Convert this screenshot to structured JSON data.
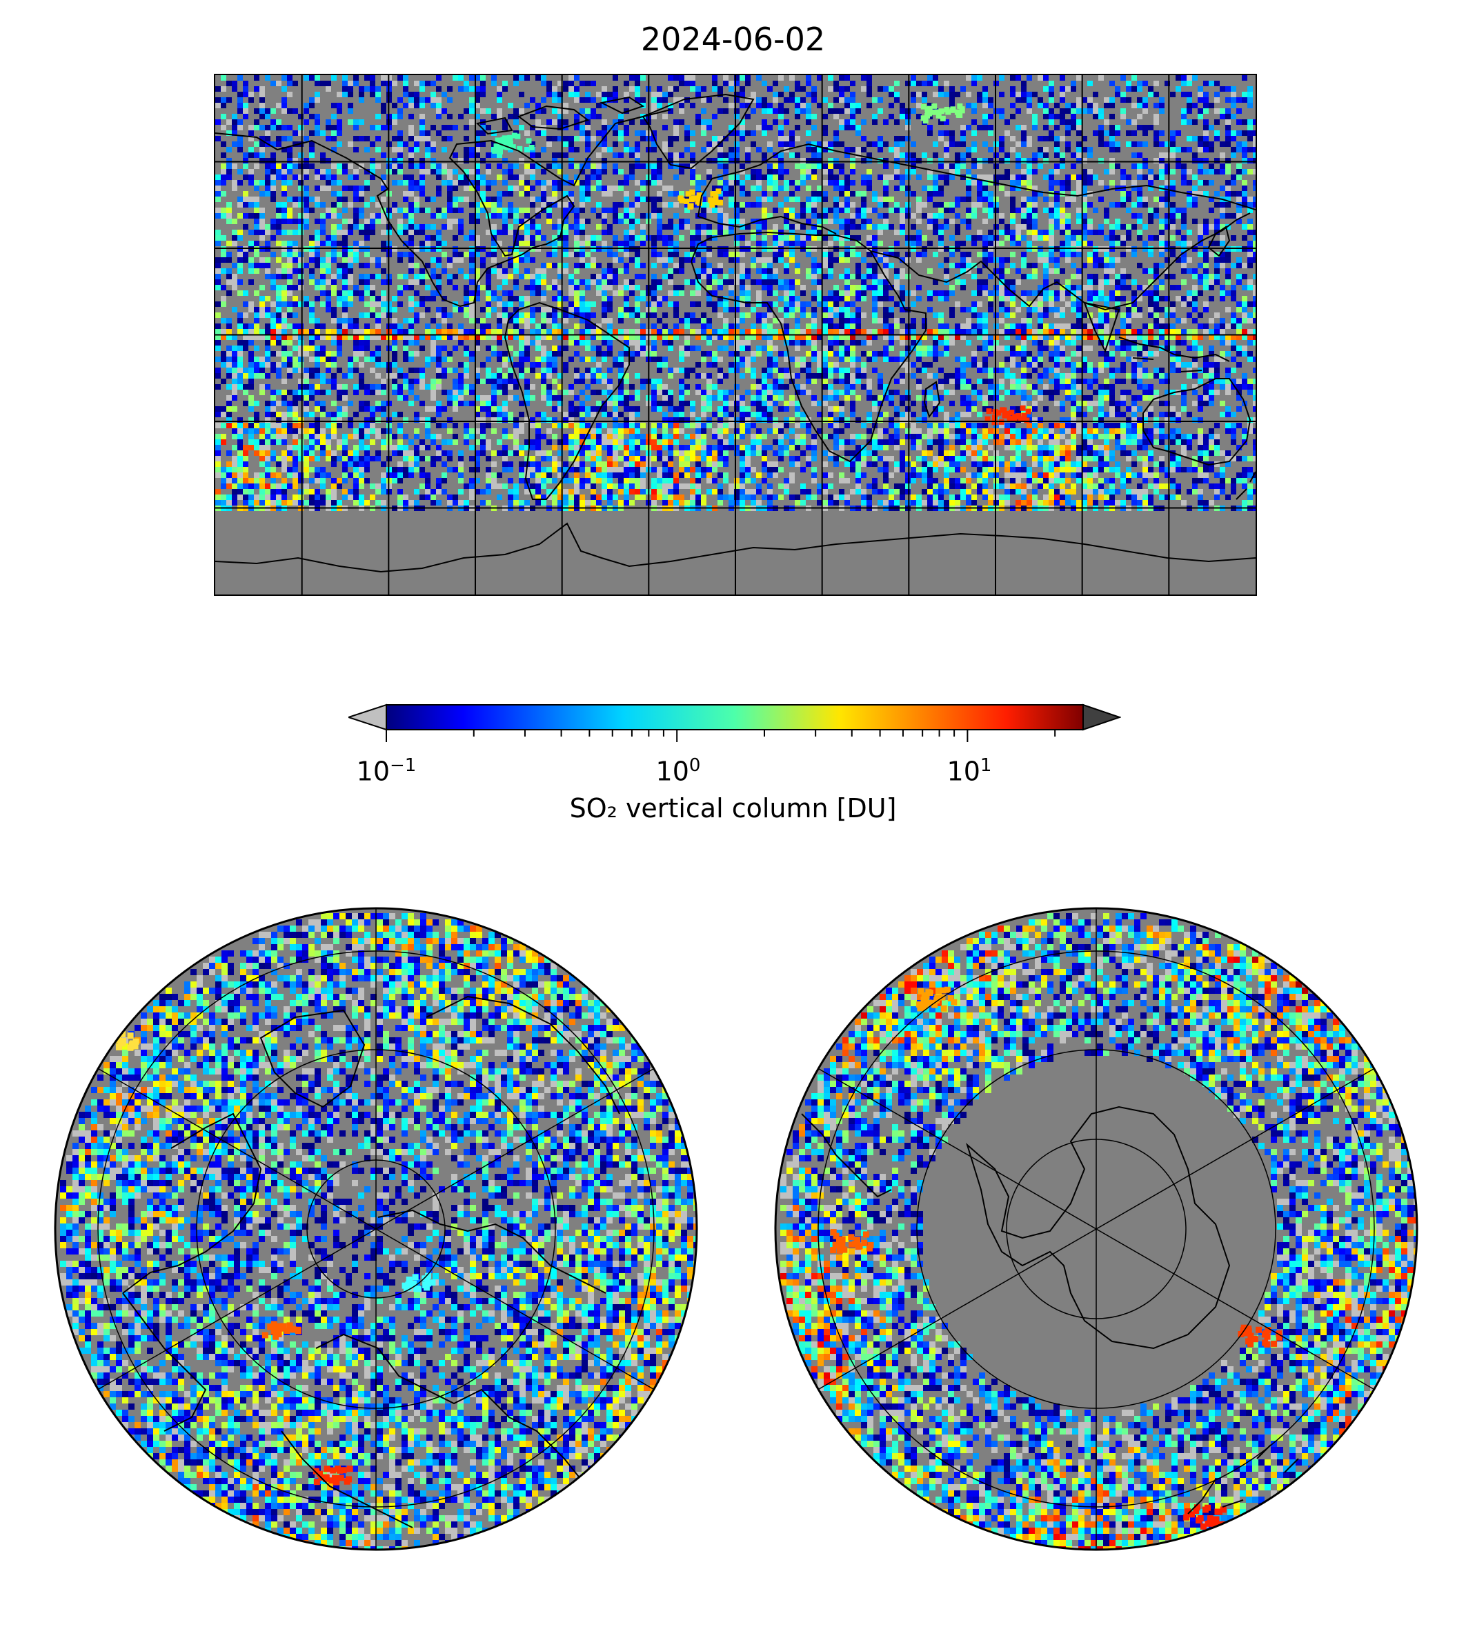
{
  "title": "2024-06-02",
  "colorbar": {
    "label": "SO₂ vertical column [DU]",
    "ticks": [
      {
        "base": "10",
        "exp": "−1",
        "value": 0.1
      },
      {
        "base": "10",
        "exp": "0",
        "value": 1
      },
      {
        "base": "10",
        "exp": "1",
        "value": 10
      }
    ],
    "range": [
      0.1,
      25
    ],
    "scale": "log",
    "colormap": "jet",
    "under_color": "#c0c0c0",
    "over_color": "#404040"
  },
  "panels": [
    {
      "name": "global",
      "projection": "plate-carree",
      "gridlines_lon_step": 30,
      "gridlines_lat_step": 30
    },
    {
      "name": "north-polar",
      "projection": "north-polar-stereographic"
    },
    {
      "name": "south-polar",
      "projection": "south-polar-stereographic"
    }
  ],
  "colors": {
    "no_data": "#808080",
    "coastline": "#000000",
    "grid": "#000000"
  }
}
